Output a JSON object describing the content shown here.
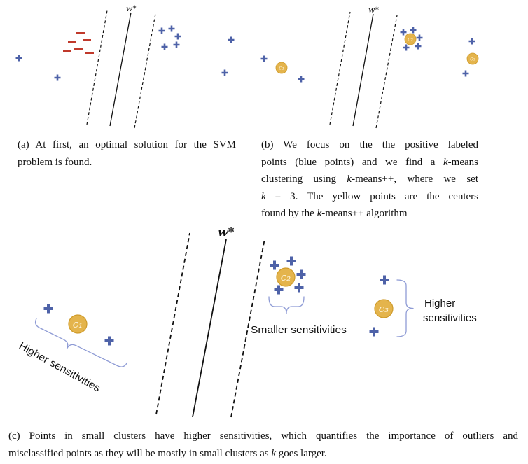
{
  "figure": {
    "panel_a": {
      "weight_label": "w*",
      "caption_lines": [
        "(a) At first, an optimal solution for the SVM",
        "problem is found."
      ]
    },
    "panel_b": {
      "weight_label": "w*",
      "center_labels": [
        "c₁",
        "c₂",
        "c₃"
      ],
      "caption_lines": [
        "(b) We focus on the the positive labeled",
        "points (blue points) and we find a k-means",
        "clustering using k-means++, where we set",
        "k = 3. The yellow points are the centers",
        "found by the k-means++ algorithm"
      ]
    },
    "panel_c": {
      "weight_label": "w*",
      "center_labels": [
        "c₁",
        "c₂",
        "c₃"
      ],
      "annotations": {
        "outlier_brace_label": "Higher sensitivities",
        "dense_cluster_brace_label": "Smaller sensitivities",
        "small_cluster_brace_label": [
          "Higher",
          "sensitivities"
        ]
      },
      "caption_lines": [
        "(c) Points in small clusters have higher sensitivities, which quantifies the importance of outliers and",
        "misclassified points as they will be mostly in small clusters as k goes larger."
      ]
    }
  },
  "colors": {
    "positive_point": "#4e62a8",
    "negative_point": "#c0392b",
    "cluster_center": "#e4b44c",
    "brace": "#8e9bd5"
  }
}
